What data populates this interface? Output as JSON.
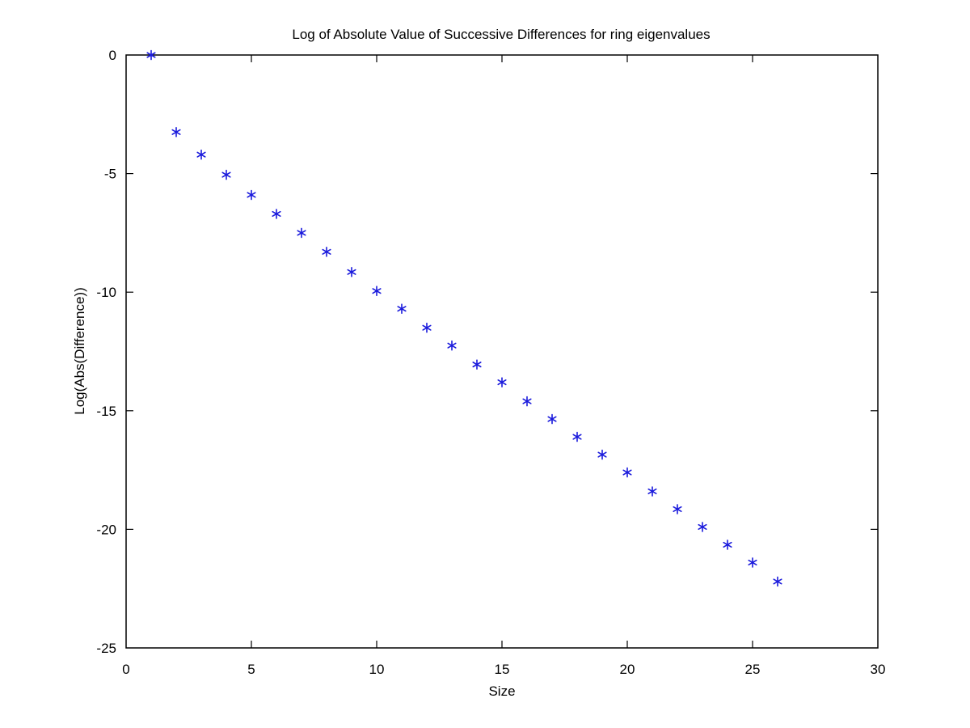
{
  "chart_data": {
    "type": "scatter",
    "title": "Log of Absolute Value of Successive Differences for ring eigenvalues",
    "xlabel": "Size",
    "ylabel": "Log(Abs(Difference))",
    "xlim": [
      0,
      30
    ],
    "ylim": [
      -25,
      0
    ],
    "xticks": [
      0,
      5,
      10,
      15,
      20,
      25,
      30
    ],
    "yticks": [
      0,
      -5,
      -10,
      -15,
      -20,
      -25
    ],
    "grid": false,
    "legend": "none",
    "marker": "*",
    "color": "#1a1adc",
    "series": [
      {
        "x": [
          1,
          2,
          3,
          4,
          5,
          6,
          7,
          8,
          9,
          10,
          11,
          12,
          13,
          14,
          15,
          16,
          17,
          18,
          19,
          20,
          21,
          22,
          23,
          24,
          25,
          26
        ],
        "y": [
          0,
          -3.25,
          -4.2,
          -5.05,
          -5.9,
          -6.7,
          -7.5,
          -8.3,
          -9.15,
          -9.95,
          -10.7,
          -11.5,
          -12.25,
          -13.05,
          -13.8,
          -14.6,
          -15.35,
          -16.1,
          -16.85,
          -17.6,
          -18.4,
          -19.15,
          -19.9,
          -20.65,
          -21.4,
          -22.2
        ]
      }
    ]
  }
}
